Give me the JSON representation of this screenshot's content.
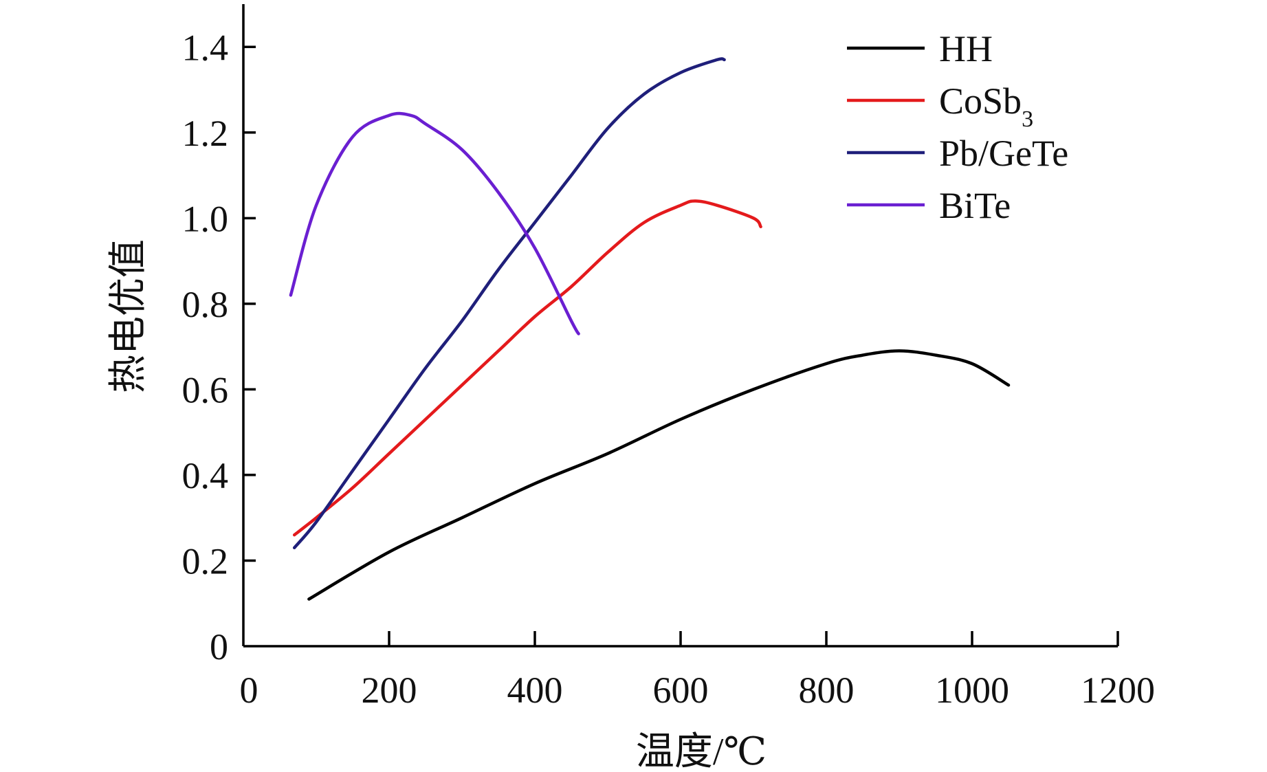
{
  "chart_data": {
    "type": "line",
    "title": "",
    "xlabel": "温度/℃",
    "ylabel": "热电优值",
    "xlim": [
      0,
      1200
    ],
    "ylim": [
      0,
      1.5
    ],
    "xticks": [
      0,
      200,
      400,
      600,
      800,
      1000,
      1200
    ],
    "xtick_labels": [
      "0",
      "200",
      "400",
      "600",
      "800",
      "1000",
      "1200"
    ],
    "yticks": [
      0,
      0.2,
      0.4,
      0.6,
      0.8,
      1.0,
      1.2,
      1.4
    ],
    "ytick_labels": [
      "0",
      "0.2",
      "0.4",
      "0.6",
      "0.8",
      "1.0",
      "1.2",
      "1.4"
    ],
    "grid": false,
    "legend_position": "top-right",
    "series": [
      {
        "name": "HH",
        "name_base": "HH",
        "name_sub": "",
        "color": "#000000",
        "x": [
          90,
          200,
          300,
          400,
          500,
          600,
          700,
          800,
          850,
          900,
          950,
          1000,
          1050
        ],
        "y": [
          0.11,
          0.22,
          0.3,
          0.38,
          0.45,
          0.53,
          0.6,
          0.66,
          0.68,
          0.69,
          0.68,
          0.66,
          0.61
        ]
      },
      {
        "name": "CoSb3",
        "name_base": "CoSb",
        "name_sub": "3",
        "color": "#e41a1c",
        "x": [
          70,
          100,
          150,
          200,
          250,
          300,
          350,
          400,
          450,
          500,
          550,
          600,
          620,
          650,
          700,
          710
        ],
        "y": [
          0.26,
          0.3,
          0.37,
          0.45,
          0.53,
          0.61,
          0.69,
          0.77,
          0.84,
          0.92,
          0.99,
          1.03,
          1.04,
          1.03,
          1.0,
          0.98
        ]
      },
      {
        "name": "Pb/GeTe",
        "name_base": "Pb/GeTe",
        "name_sub": "",
        "color": "#1f1f7a",
        "x": [
          70,
          100,
          150,
          200,
          250,
          300,
          350,
          400,
          450,
          500,
          550,
          600,
          650,
          660
        ],
        "y": [
          0.23,
          0.29,
          0.41,
          0.53,
          0.65,
          0.76,
          0.88,
          0.99,
          1.1,
          1.21,
          1.29,
          1.34,
          1.37,
          1.37
        ]
      },
      {
        "name": "BiTe",
        "name_base": "BiTe",
        "name_sub": "",
        "color": "#6a1fd1",
        "x": [
          65,
          100,
          150,
          200,
          230,
          250,
          300,
          350,
          400,
          450,
          460
        ],
        "y": [
          0.82,
          1.03,
          1.19,
          1.24,
          1.24,
          1.22,
          1.16,
          1.06,
          0.93,
          0.76,
          0.73
        ]
      }
    ]
  }
}
